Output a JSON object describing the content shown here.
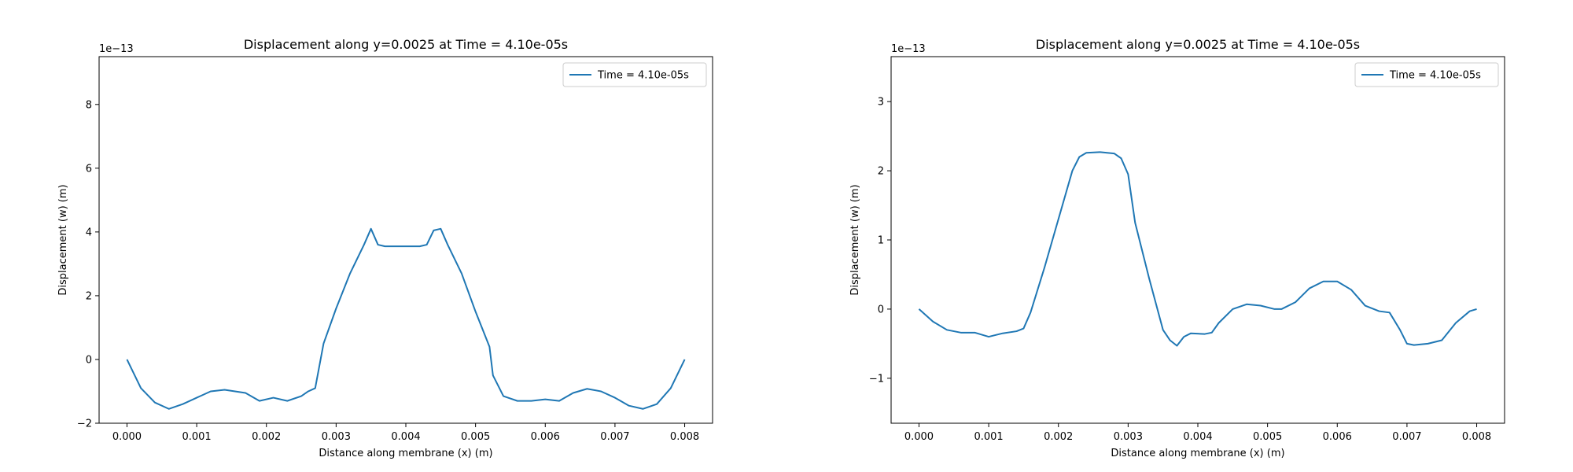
{
  "chart_data": [
    {
      "type": "line",
      "title": "Displacement along y=0.0025 at Time = 4.10e-05s",
      "xlabel": "Distance along membrane (x) (m)",
      "ylabel": "Displacement (w) (m)",
      "y_offset_label": "1e−13",
      "xlim": [
        -0.0004,
        0.0084
      ],
      "ylim": [
        -2.0,
        9.5
      ],
      "xticks": [
        0.0,
        0.001,
        0.002,
        0.003,
        0.004,
        0.005,
        0.006,
        0.007,
        0.008
      ],
      "xtick_labels": [
        "0.000",
        "0.001",
        "0.002",
        "0.003",
        "0.004",
        "0.005",
        "0.006",
        "0.007",
        "0.008"
      ],
      "yticks": [
        -2,
        0,
        2,
        4,
        6,
        8
      ],
      "ytick_labels": [
        "−2",
        "0",
        "2",
        "4",
        "6",
        "8"
      ],
      "legend_position": "top-right",
      "series": [
        {
          "name": "Time = 4.10e-05s",
          "color": "#1f77b4",
          "x": [
            0.0,
            0.0002,
            0.0004,
            0.0006,
            0.0008,
            0.001,
            0.0012,
            0.0014,
            0.0017,
            0.0019,
            0.0021,
            0.0023,
            0.0025,
            0.0026,
            0.0027,
            0.00282,
            0.003,
            0.0032,
            0.0034,
            0.0035,
            0.0036,
            0.0037,
            0.0038,
            0.004,
            0.0042,
            0.0043,
            0.0044,
            0.0045,
            0.0046,
            0.0048,
            0.005,
            0.0052,
            0.00525,
            0.0054,
            0.0056,
            0.0058,
            0.006,
            0.0062,
            0.0064,
            0.0066,
            0.0068,
            0.007,
            0.0072,
            0.0074,
            0.0076,
            0.0078,
            0.008
          ],
          "y": [
            0.0,
            -0.9,
            -1.35,
            -1.55,
            -1.4,
            -1.2,
            -1.0,
            -0.95,
            -1.05,
            -1.3,
            -1.2,
            -1.3,
            -1.15,
            -1.0,
            -0.9,
            0.5,
            1.6,
            2.7,
            3.6,
            4.1,
            3.6,
            3.55,
            3.55,
            3.55,
            3.55,
            3.6,
            4.05,
            4.1,
            3.6,
            2.7,
            1.5,
            0.4,
            -0.5,
            -1.15,
            -1.3,
            -1.3,
            -1.25,
            -1.3,
            -1.05,
            -0.92,
            -1.0,
            -1.2,
            -1.45,
            -1.55,
            -1.4,
            -0.9,
            0.0
          ]
        }
      ]
    },
    {
      "type": "line",
      "title": "Displacement along y=0.0025 at Time = 4.10e-05s",
      "xlabel": "Distance along membrane (x) (m)",
      "ylabel": "Displacement (w) (m)",
      "y_offset_label": "1e−13",
      "xlim": [
        -0.0004,
        0.0084
      ],
      "ylim": [
        -1.65,
        3.65
      ],
      "xticks": [
        0.0,
        0.001,
        0.002,
        0.003,
        0.004,
        0.005,
        0.006,
        0.007,
        0.008
      ],
      "xtick_labels": [
        "0.000",
        "0.001",
        "0.002",
        "0.003",
        "0.004",
        "0.005",
        "0.006",
        "0.007",
        "0.008"
      ],
      "yticks": [
        -1,
        0,
        1,
        2,
        3
      ],
      "ytick_labels": [
        "−1",
        "0",
        "1",
        "2",
        "3"
      ],
      "legend_position": "top-right",
      "series": [
        {
          "name": "Time = 4.10e-05s",
          "color": "#1f77b4",
          "x": [
            0.0,
            0.0002,
            0.0004,
            0.0006,
            0.0008,
            0.001,
            0.0012,
            0.0014,
            0.0015,
            0.0016,
            0.0018,
            0.002,
            0.0022,
            0.0023,
            0.0024,
            0.0026,
            0.0028,
            0.0029,
            0.003,
            0.0031,
            0.0033,
            0.0035,
            0.0036,
            0.0037,
            0.0038,
            0.0039,
            0.0041,
            0.0042,
            0.0043,
            0.0045,
            0.0047,
            0.0049,
            0.0051,
            0.0052,
            0.0054,
            0.0056,
            0.0058,
            0.006,
            0.0062,
            0.0064,
            0.0066,
            0.00675,
            0.0069,
            0.007,
            0.0071,
            0.0073,
            0.0075,
            0.0077,
            0.0079,
            0.008
          ],
          "y": [
            0.0,
            -0.18,
            -0.3,
            -0.34,
            -0.34,
            -0.4,
            -0.35,
            -0.32,
            -0.28,
            -0.05,
            0.6,
            1.3,
            2.0,
            2.2,
            2.26,
            2.27,
            2.25,
            2.18,
            1.95,
            1.25,
            0.45,
            -0.3,
            -0.45,
            -0.53,
            -0.4,
            -0.35,
            -0.36,
            -0.34,
            -0.2,
            0.0,
            0.07,
            0.05,
            0.0,
            0.0,
            0.1,
            0.3,
            0.4,
            0.4,
            0.28,
            0.05,
            -0.03,
            -0.05,
            -0.3,
            -0.5,
            -0.52,
            -0.5,
            -0.45,
            -0.2,
            -0.03,
            0.0
          ]
        }
      ]
    }
  ]
}
